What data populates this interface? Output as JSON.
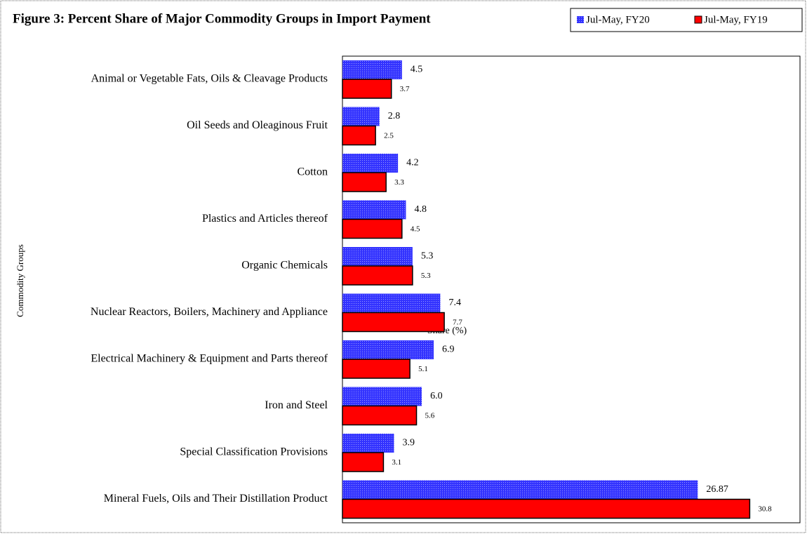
{
  "chart_data": {
    "type": "barh",
    "title": "Figure 3: Percent Share of Major Commodity Groups in Import Payment",
    "xlabel": "Share (%)",
    "ylabel": "Commodity Groups",
    "categories": [
      "Animal or Vegetable Fats, Oils & Cleavage Products",
      "Oil Seeds and Oleaginous Fruit",
      "Cotton",
      "Plastics and Articles thereof",
      "Organic Chemicals",
      "Nuclear Reactors, Boilers, Machinery and Appliance",
      "Electrical Machinery & Equipment and Parts thereof",
      "Iron and Steel",
      "Special Classification Provisions",
      "Mineral Fuels, Oils and Their Distillation Product"
    ],
    "series": [
      {
        "name": "Jul-May, FY20",
        "color": "#3333ff",
        "values": [
          4.5,
          2.8,
          4.2,
          4.8,
          5.3,
          7.4,
          6.9,
          6.0,
          3.9,
          26.87
        ],
        "value_labels": [
          "4.5",
          "2.8",
          "4.2",
          "4.8",
          "5.3",
          "7.4",
          "6.9",
          "6.0",
          "3.9",
          "26.87"
        ]
      },
      {
        "name": "Jul-May, FY19",
        "color": "#ff0000",
        "values": [
          3.7,
          2.5,
          3.3,
          4.5,
          5.3,
          7.7,
          5.1,
          5.6,
          3.1,
          30.8
        ]
      }
    ],
    "xlim": [
      0,
      34.6
    ],
    "legend": "top-right"
  }
}
